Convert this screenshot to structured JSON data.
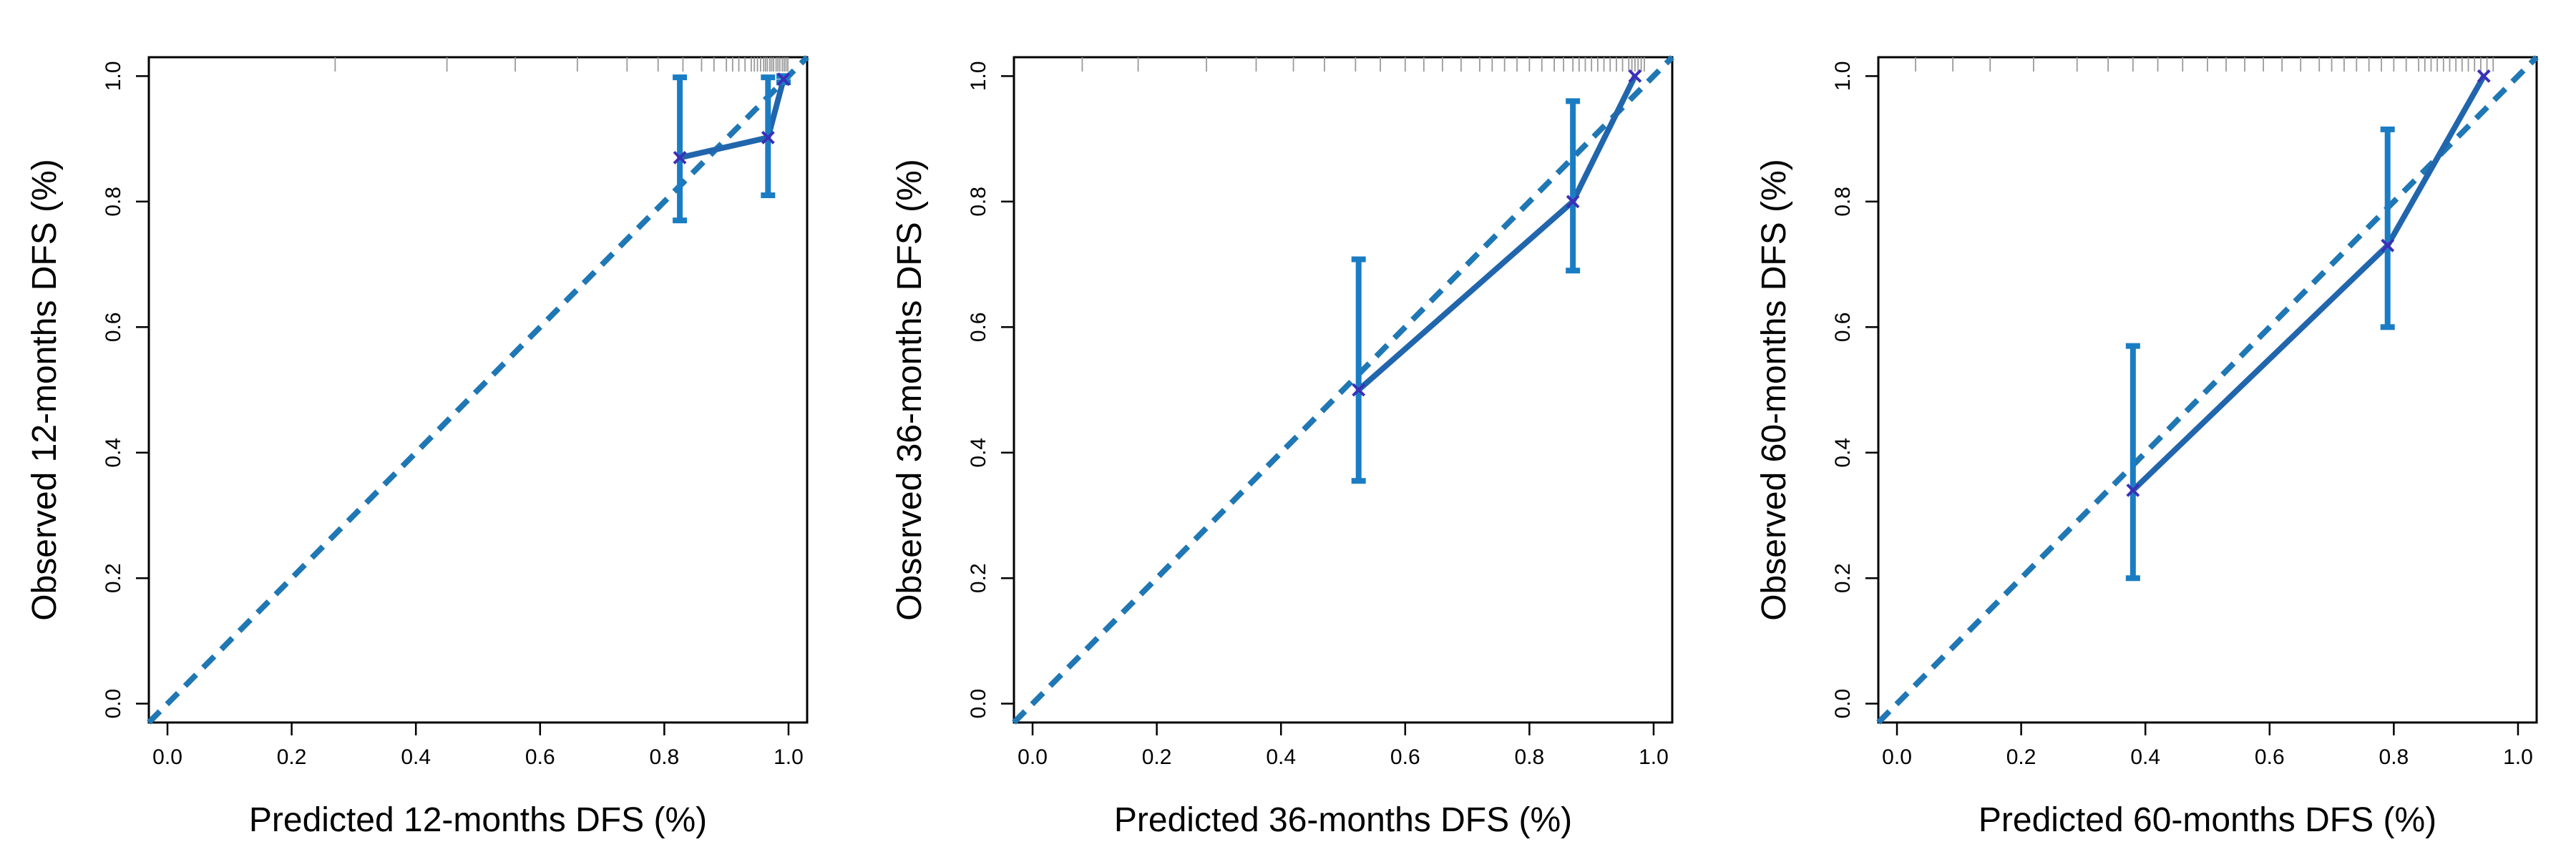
{
  "chart_data": [
    {
      "type": "line",
      "xlabel": "Predicted 12-months DFS (%)",
      "ylabel": "Observed 12-months DFS (%)",
      "xlim": [
        -0.03,
        1.03
      ],
      "ylim": [
        -0.03,
        1.03
      ],
      "xticks": [
        "0.0",
        "0.2",
        "0.4",
        "0.6",
        "0.8",
        "1.0"
      ],
      "yticks": [
        "0.0",
        "0.2",
        "0.4",
        "0.6",
        "0.8",
        "1.0"
      ],
      "grid": false,
      "reference_line": {
        "style": "dashed",
        "from": [
          -0.03,
          -0.03
        ],
        "to": [
          1.03,
          1.03
        ]
      },
      "calibration": [
        {
          "x": 0.825,
          "y": 0.87,
          "ci_low": 0.77,
          "ci_high": 0.998
        },
        {
          "x": 0.967,
          "y": 0.902,
          "ci_low": 0.81,
          "ci_high": 0.998
        },
        {
          "x": 0.992,
          "y": 0.995,
          "ci_low": 0.99,
          "ci_high": 1.0
        }
      ],
      "rug": [
        0.27,
        0.45,
        0.56,
        0.66,
        0.74,
        0.79,
        0.83,
        0.86,
        0.88,
        0.9,
        0.91,
        0.92,
        0.93,
        0.94,
        0.945,
        0.95,
        0.955,
        0.96,
        0.963,
        0.966,
        0.97,
        0.973,
        0.976,
        0.98,
        0.983,
        0.986,
        0.99,
        0.993,
        0.996,
        0.999
      ]
    },
    {
      "type": "line",
      "xlabel": "Predicted 36-months DFS (%)",
      "ylabel": "Observed 36-months DFS (%)",
      "xlim": [
        -0.03,
        1.03
      ],
      "ylim": [
        -0.03,
        1.03
      ],
      "xticks": [
        "0.0",
        "0.2",
        "0.4",
        "0.6",
        "0.8",
        "1.0"
      ],
      "yticks": [
        "0.0",
        "0.2",
        "0.4",
        "0.6",
        "0.8",
        "1.0"
      ],
      "grid": false,
      "reference_line": {
        "style": "dashed",
        "from": [
          -0.03,
          -0.03
        ],
        "to": [
          1.03,
          1.03
        ]
      },
      "calibration": [
        {
          "x": 0.525,
          "y": 0.5,
          "ci_low": 0.355,
          "ci_high": 0.708
        },
        {
          "x": 0.87,
          "y": 0.8,
          "ci_low": 0.69,
          "ci_high": 0.96
        },
        {
          "x": 0.97,
          "y": 1.0,
          "ci_low": 1.0,
          "ci_high": 1.0
        }
      ],
      "rug": [
        0.08,
        0.17,
        0.28,
        0.36,
        0.42,
        0.47,
        0.52,
        0.56,
        0.6,
        0.63,
        0.66,
        0.69,
        0.72,
        0.74,
        0.76,
        0.78,
        0.8,
        0.82,
        0.84,
        0.855,
        0.87,
        0.88,
        0.89,
        0.9,
        0.91,
        0.92,
        0.93,
        0.94,
        0.95,
        0.96,
        0.965,
        0.97,
        0.975,
        0.98,
        0.985
      ]
    },
    {
      "type": "line",
      "xlabel": "Predicted 60-months DFS (%)",
      "ylabel": "Observed 60-months DFS (%)",
      "xlim": [
        -0.03,
        1.03
      ],
      "ylim": [
        -0.03,
        1.03
      ],
      "xticks": [
        "0.0",
        "0.2",
        "0.4",
        "0.6",
        "0.8",
        "1.0"
      ],
      "yticks": [
        "0.0",
        "0.2",
        "0.4",
        "0.6",
        "0.8",
        "1.0"
      ],
      "grid": false,
      "reference_line": {
        "style": "dashed",
        "from": [
          -0.03,
          -0.03
        ],
        "to": [
          1.03,
          1.03
        ]
      },
      "calibration": [
        {
          "x": 0.38,
          "y": 0.34,
          "ci_low": 0.2,
          "ci_high": 0.57
        },
        {
          "x": 0.79,
          "y": 0.73,
          "ci_low": 0.6,
          "ci_high": 0.915
        },
        {
          "x": 0.945,
          "y": 1.0,
          "ci_low": 1.0,
          "ci_high": 1.0
        }
      ],
      "rug": [
        0.03,
        0.09,
        0.15,
        0.22,
        0.29,
        0.34,
        0.38,
        0.42,
        0.46,
        0.5,
        0.53,
        0.56,
        0.59,
        0.62,
        0.65,
        0.68,
        0.7,
        0.72,
        0.74,
        0.76,
        0.78,
        0.8,
        0.82,
        0.84,
        0.85,
        0.86,
        0.87,
        0.88,
        0.89,
        0.9,
        0.91,
        0.92,
        0.93,
        0.94,
        0.95,
        0.96
      ]
    }
  ],
  "colors": {
    "reference_line": "#1f77b4",
    "calibration_line": "#2166ac",
    "error_bar": "#1a7dc4",
    "point_marker": "#3b2fb8",
    "rug": "#9a9a9a",
    "axis": "#000000"
  }
}
